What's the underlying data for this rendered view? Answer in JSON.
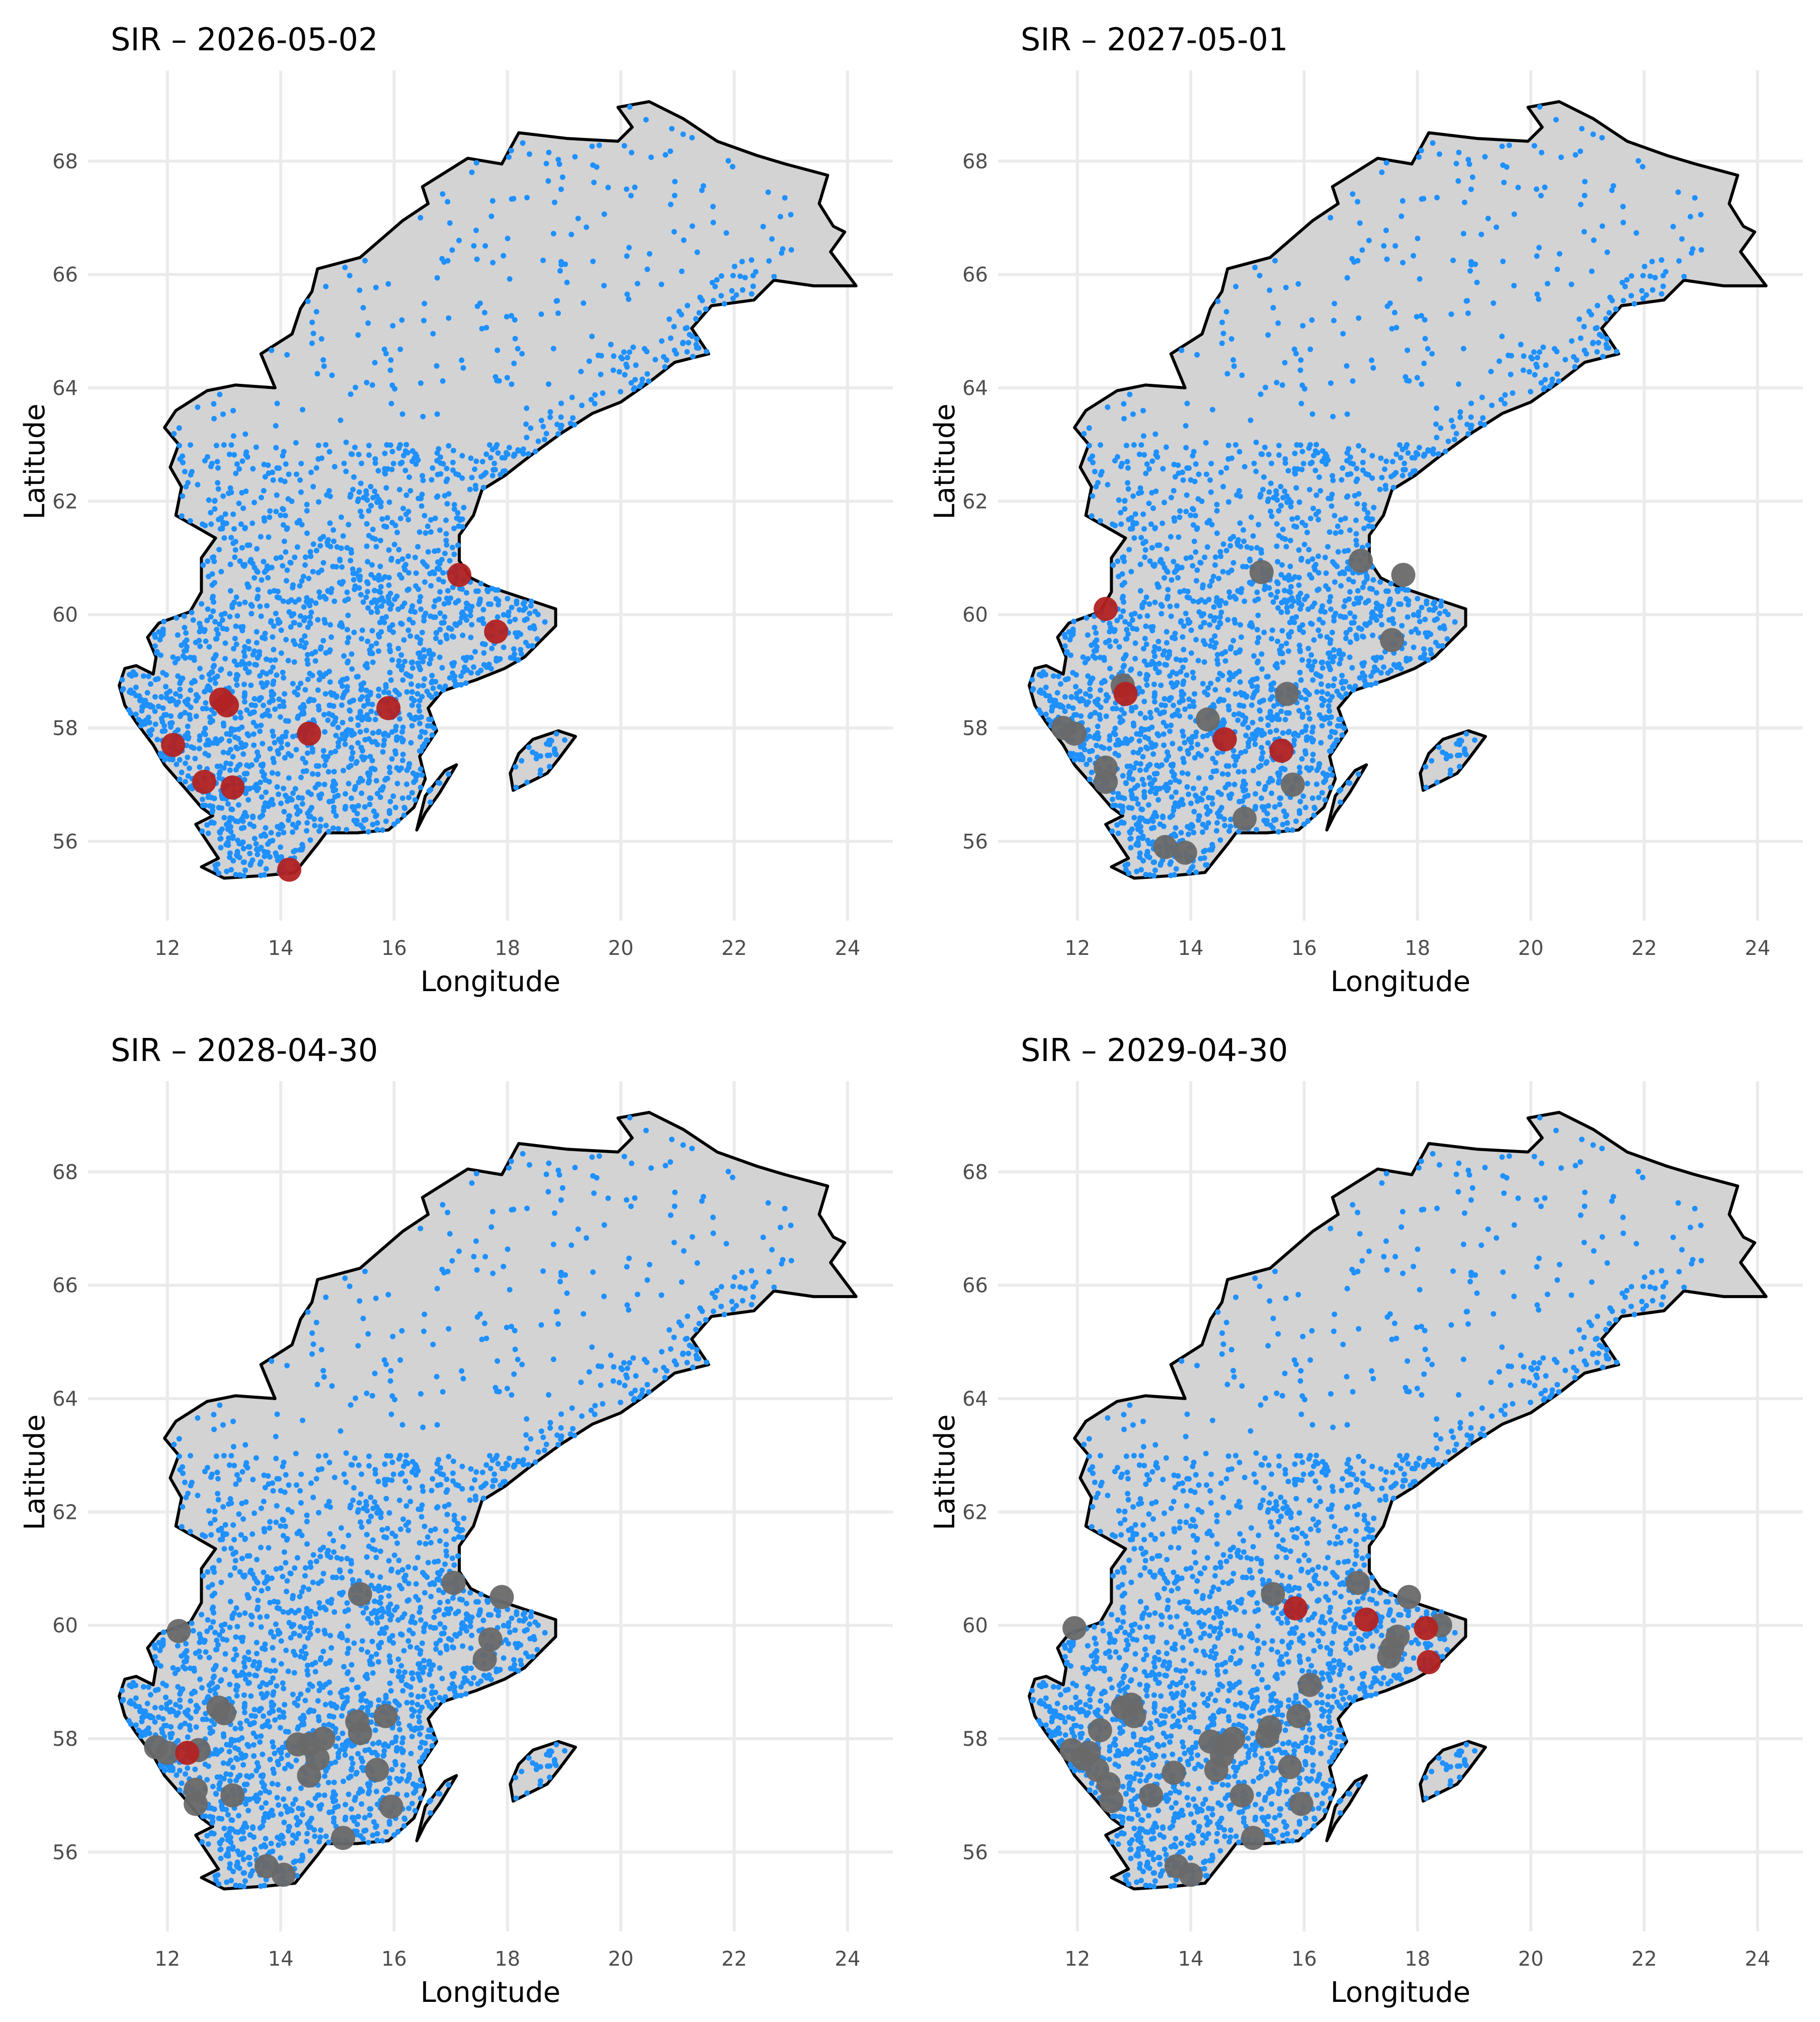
{
  "chart_data": [
    {
      "type": "scatter",
      "title": "SIR – 2026-05-02",
      "xlabel": "Longitude",
      "ylabel": "Latitude",
      "xlim": [
        10.6,
        24.8
      ],
      "ylim": [
        54.6,
        69.6
      ],
      "x_ticks": [
        "12",
        "14",
        "16",
        "18",
        "20",
        "22",
        "24"
      ],
      "y_ticks": [
        "56",
        "58",
        "60",
        "62",
        "64",
        "66",
        "68"
      ],
      "grid": true,
      "legend": "none",
      "colors": {
        "land": "#d3d3d3",
        "border": "#000000",
        "towns": "#1e90ff",
        "infected": "#b22222",
        "recovered": "#696969"
      },
      "series": [
        {
          "status": "infected",
          "x": [
            12.1,
            12.65,
            12.95,
            13.05,
            13.15,
            14.15,
            14.5,
            15.9,
            17.15,
            17.8
          ],
          "y": [
            57.7,
            57.05,
            58.5,
            58.4,
            56.95,
            55.5,
            57.9,
            58.35,
            60.7,
            59.7
          ]
        },
        {
          "status": "recovered",
          "x": [],
          "y": []
        }
      ]
    },
    {
      "type": "scatter",
      "title": "SIR – 2027-05-01",
      "xlabel": "Longitude",
      "ylabel": "Latitude",
      "xlim": [
        10.6,
        24.8
      ],
      "ylim": [
        54.6,
        69.6
      ],
      "x_ticks": [
        "12",
        "14",
        "16",
        "18",
        "20",
        "22",
        "24"
      ],
      "y_ticks": [
        "56",
        "58",
        "60",
        "62",
        "64",
        "66",
        "68"
      ],
      "grid": true,
      "legend": "none",
      "colors": {
        "land": "#d3d3d3",
        "border": "#000000",
        "towns": "#1e90ff",
        "infected": "#b22222",
        "recovered": "#696969"
      },
      "series": [
        {
          "status": "infected",
          "x": [
            12.5,
            12.85,
            14.6,
            15.6
          ],
          "y": [
            60.1,
            58.6,
            57.8,
            57.6
          ]
        },
        {
          "status": "recovered",
          "x": [
            11.75,
            11.95,
            12.5,
            12.5,
            12.8,
            13.55,
            13.9,
            14.3,
            14.95,
            15.25,
            15.7,
            15.8,
            17.0,
            17.55,
            17.75
          ],
          "y": [
            58.0,
            57.9,
            57.3,
            57.05,
            58.75,
            55.9,
            55.8,
            58.15,
            56.4,
            60.75,
            58.6,
            57.0,
            60.95,
            59.55,
            60.7
          ]
        }
      ]
    },
    {
      "type": "scatter",
      "title": "SIR – 2028-04-30",
      "xlabel": "Longitude",
      "ylabel": "Latitude",
      "xlim": [
        10.6,
        24.8
      ],
      "ylim": [
        54.6,
        69.6
      ],
      "x_ticks": [
        "12",
        "14",
        "16",
        "18",
        "20",
        "22",
        "24"
      ],
      "y_ticks": [
        "56",
        "58",
        "60",
        "62",
        "64",
        "66",
        "68"
      ],
      "grid": true,
      "legend": "none",
      "colors": {
        "land": "#d3d3d3",
        "border": "#000000",
        "towns": "#1e90ff",
        "infected": "#b22222",
        "recovered": "#696969"
      },
      "series": [
        {
          "status": "infected",
          "x": [
            12.35
          ],
          "y": [
            57.75
          ]
        },
        {
          "status": "recovered",
          "x": [
            11.8,
            12.0,
            12.2,
            12.5,
            12.5,
            12.55,
            12.9,
            13.0,
            13.15,
            13.75,
            14.05,
            14.3,
            14.5,
            14.5,
            14.65,
            14.75,
            15.1,
            15.35,
            15.4,
            15.4,
            15.7,
            15.85,
            15.95,
            17.05,
            17.6,
            17.7,
            17.9
          ],
          "y": [
            57.85,
            57.75,
            59.9,
            57.1,
            56.85,
            57.8,
            58.55,
            58.45,
            57.0,
            55.75,
            55.6,
            57.9,
            57.35,
            57.9,
            57.65,
            58.0,
            56.25,
            58.3,
            58.1,
            60.55,
            57.45,
            58.4,
            56.8,
            60.75,
            59.4,
            59.75,
            60.5
          ]
        }
      ]
    },
    {
      "type": "scatter",
      "title": "SIR – 2029-04-30",
      "xlabel": "Longitude",
      "ylabel": "Latitude",
      "xlim": [
        10.6,
        24.8
      ],
      "ylim": [
        54.6,
        69.6
      ],
      "x_ticks": [
        "12",
        "14",
        "16",
        "18",
        "20",
        "22",
        "24"
      ],
      "y_ticks": [
        "56",
        "58",
        "60",
        "62",
        "64",
        "66",
        "68"
      ],
      "grid": true,
      "legend": "none",
      "colors": {
        "land": "#d3d3d3",
        "border": "#000000",
        "towns": "#1e90ff",
        "infected": "#b22222",
        "recovered": "#696969"
      },
      "series": [
        {
          "status": "infected",
          "x": [
            15.85,
            17.1,
            18.15,
            18.2
          ],
          "y": [
            60.3,
            60.1,
            59.95,
            59.35
          ]
        },
        {
          "status": "recovered",
          "x": [
            11.9,
            11.95,
            12.1,
            12.2,
            12.35,
            12.4,
            12.55,
            12.6,
            12.8,
            12.95,
            13.0,
            13.3,
            13.7,
            13.75,
            14.0,
            14.35,
            14.45,
            14.55,
            14.65,
            14.75,
            14.9,
            15.1,
            15.35,
            15.4,
            15.45,
            15.75,
            15.9,
            15.95,
            16.1,
            16.95,
            17.5,
            17.55,
            17.65,
            17.85,
            18.4
          ],
          "y": [
            57.8,
            59.95,
            57.65,
            57.75,
            57.45,
            58.15,
            57.2,
            56.9,
            58.55,
            58.6,
            58.4,
            57.0,
            57.4,
            55.75,
            55.6,
            57.95,
            57.45,
            57.7,
            57.9,
            58.0,
            57.0,
            56.25,
            58.05,
            58.2,
            60.55,
            57.5,
            58.4,
            56.85,
            58.95,
            60.75,
            59.45,
            59.6,
            59.8,
            60.5,
            60.0
          ]
        }
      ]
    }
  ]
}
